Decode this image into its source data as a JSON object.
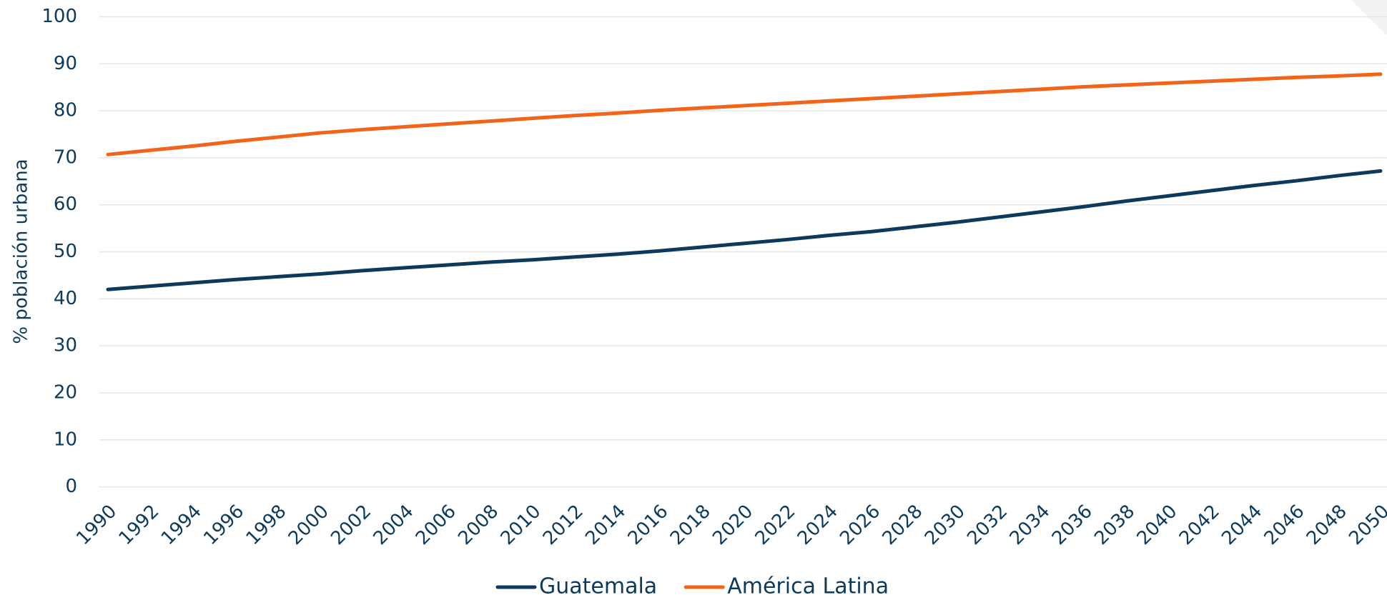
{
  "chart_data": {
    "type": "line",
    "ylabel": "% población urbana",
    "x": [
      1990,
      1992,
      1994,
      1996,
      1998,
      2000,
      2002,
      2004,
      2006,
      2008,
      2010,
      2012,
      2014,
      2016,
      2018,
      2020,
      2022,
      2024,
      2026,
      2028,
      2030,
      2032,
      2034,
      2036,
      2038,
      2040,
      2042,
      2044,
      2046,
      2048,
      2050
    ],
    "series": [
      {
        "name": "Guatemala",
        "color": "#0d3a5c",
        "values": [
          42.0,
          42.7,
          43.4,
          44.1,
          44.7,
          45.3,
          46.0,
          46.6,
          47.2,
          47.8,
          48.3,
          48.9,
          49.5,
          50.2,
          51.0,
          51.8,
          52.6,
          53.5,
          54.3,
          55.3,
          56.3,
          57.4,
          58.5,
          59.6,
          60.8,
          61.9,
          63.0,
          64.1,
          65.1,
          66.2,
          67.2
        ]
      },
      {
        "name": "América Latina",
        "color": "#f26419",
        "values": [
          70.7,
          71.6,
          72.5,
          73.5,
          74.4,
          75.3,
          76.0,
          76.6,
          77.2,
          77.8,
          78.4,
          79.0,
          79.5,
          80.1,
          80.6,
          81.1,
          81.6,
          82.1,
          82.6,
          83.1,
          83.6,
          84.1,
          84.6,
          85.1,
          85.5,
          85.9,
          86.3,
          86.7,
          87.1,
          87.4,
          87.8
        ]
      }
    ],
    "xlim": [
      1990,
      2050
    ],
    "xticks": [
      1990,
      1992,
      1994,
      1996,
      1998,
      2000,
      2002,
      2004,
      2006,
      2008,
      2010,
      2012,
      2014,
      2016,
      2018,
      2020,
      2022,
      2024,
      2026,
      2028,
      2030,
      2032,
      2034,
      2036,
      2038,
      2040,
      2042,
      2044,
      2046,
      2048,
      2050
    ],
    "ylim": [
      0,
      100
    ],
    "yticks": [
      0,
      10,
      20,
      30,
      40,
      50,
      60,
      70,
      80,
      90,
      100
    ],
    "grid": true,
    "legend": "bottom"
  }
}
